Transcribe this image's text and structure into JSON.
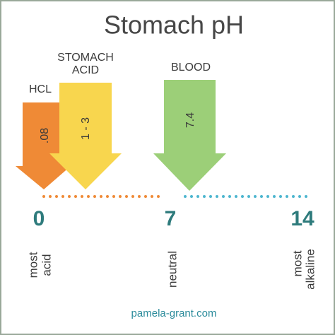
{
  "title": "Stomach pH",
  "arrows": [
    {
      "label": [
        "HCL"
      ],
      "value": ".08"
    },
    {
      "label": [
        "STOMACH",
        "ACID"
      ],
      "value": "1 - 3"
    },
    {
      "label": [
        "BLOOD"
      ],
      "value": "7.4"
    }
  ],
  "scale": [
    {
      "number": 0,
      "label": [
        "most",
        "acid"
      ]
    },
    {
      "number": 7,
      "label": [
        "neutral"
      ]
    },
    {
      "number": 14,
      "label": [
        "most",
        "alkaline"
      ]
    }
  ],
  "footer": "pamela-grant.com"
}
